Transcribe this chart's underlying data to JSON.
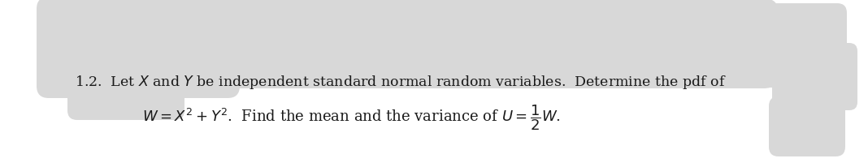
{
  "background_color": "#ffffff",
  "line1": "1.2.  Let $X$ and $Y$ be independent standard normal random variables.  Determine the pdf of",
  "line2": "$W = X^2 + Y^2$.  Find the mean and the variance of $U = \\dfrac{1}{2}W$.",
  "text_color": "#1a1a1a",
  "fontsize_line1": 12.5,
  "fontsize_line2": 13.0,
  "fig_width": 10.68,
  "fig_height": 2.07,
  "gray_light": "#d8d8d8",
  "gray_mid": "#c8c8c8",
  "gray_dark": "#b8b8b8"
}
